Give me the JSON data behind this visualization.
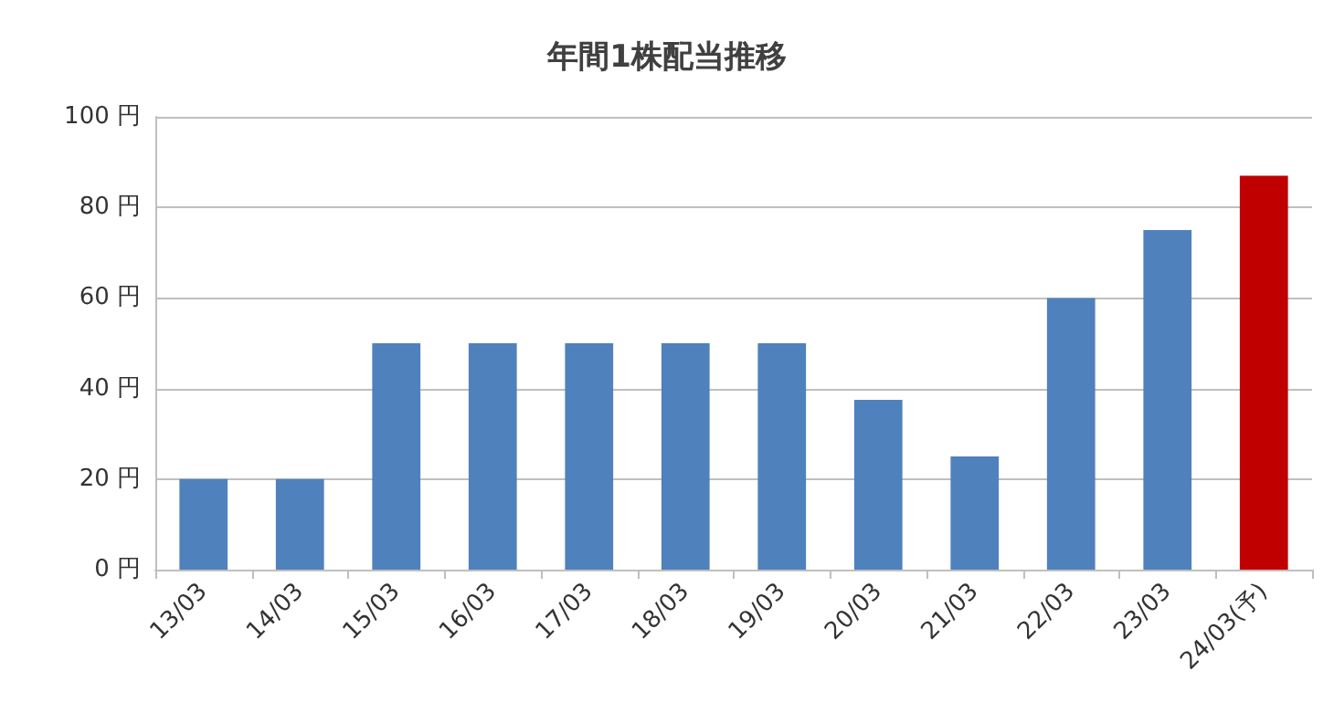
{
  "chart_data": {
    "type": "bar",
    "title": "年間1株配当推移",
    "categories": [
      "13/03",
      "14/03",
      "15/03",
      "16/03",
      "17/03",
      "18/03",
      "19/03",
      "20/03",
      "21/03",
      "22/03",
      "23/03",
      "24/03(予)"
    ],
    "values": [
      20,
      20,
      50,
      50,
      50,
      50,
      50,
      37.5,
      25,
      60,
      75,
      87
    ],
    "colors": [
      "#4f81bd",
      "#4f81bd",
      "#4f81bd",
      "#4f81bd",
      "#4f81bd",
      "#4f81bd",
      "#4f81bd",
      "#4f81bd",
      "#4f81bd",
      "#4f81bd",
      "#4f81bd",
      "#c00000"
    ],
    "ylim": [
      0,
      100
    ],
    "yticks": [
      {
        "value": 0,
        "label": "0 円"
      },
      {
        "value": 20,
        "label": "20 円"
      },
      {
        "value": 40,
        "label": "40 円"
      },
      {
        "value": 60,
        "label": "60 円"
      },
      {
        "value": 80,
        "label": "80 円"
      },
      {
        "value": 100,
        "label": "100 円"
      }
    ],
    "grid": "y"
  }
}
